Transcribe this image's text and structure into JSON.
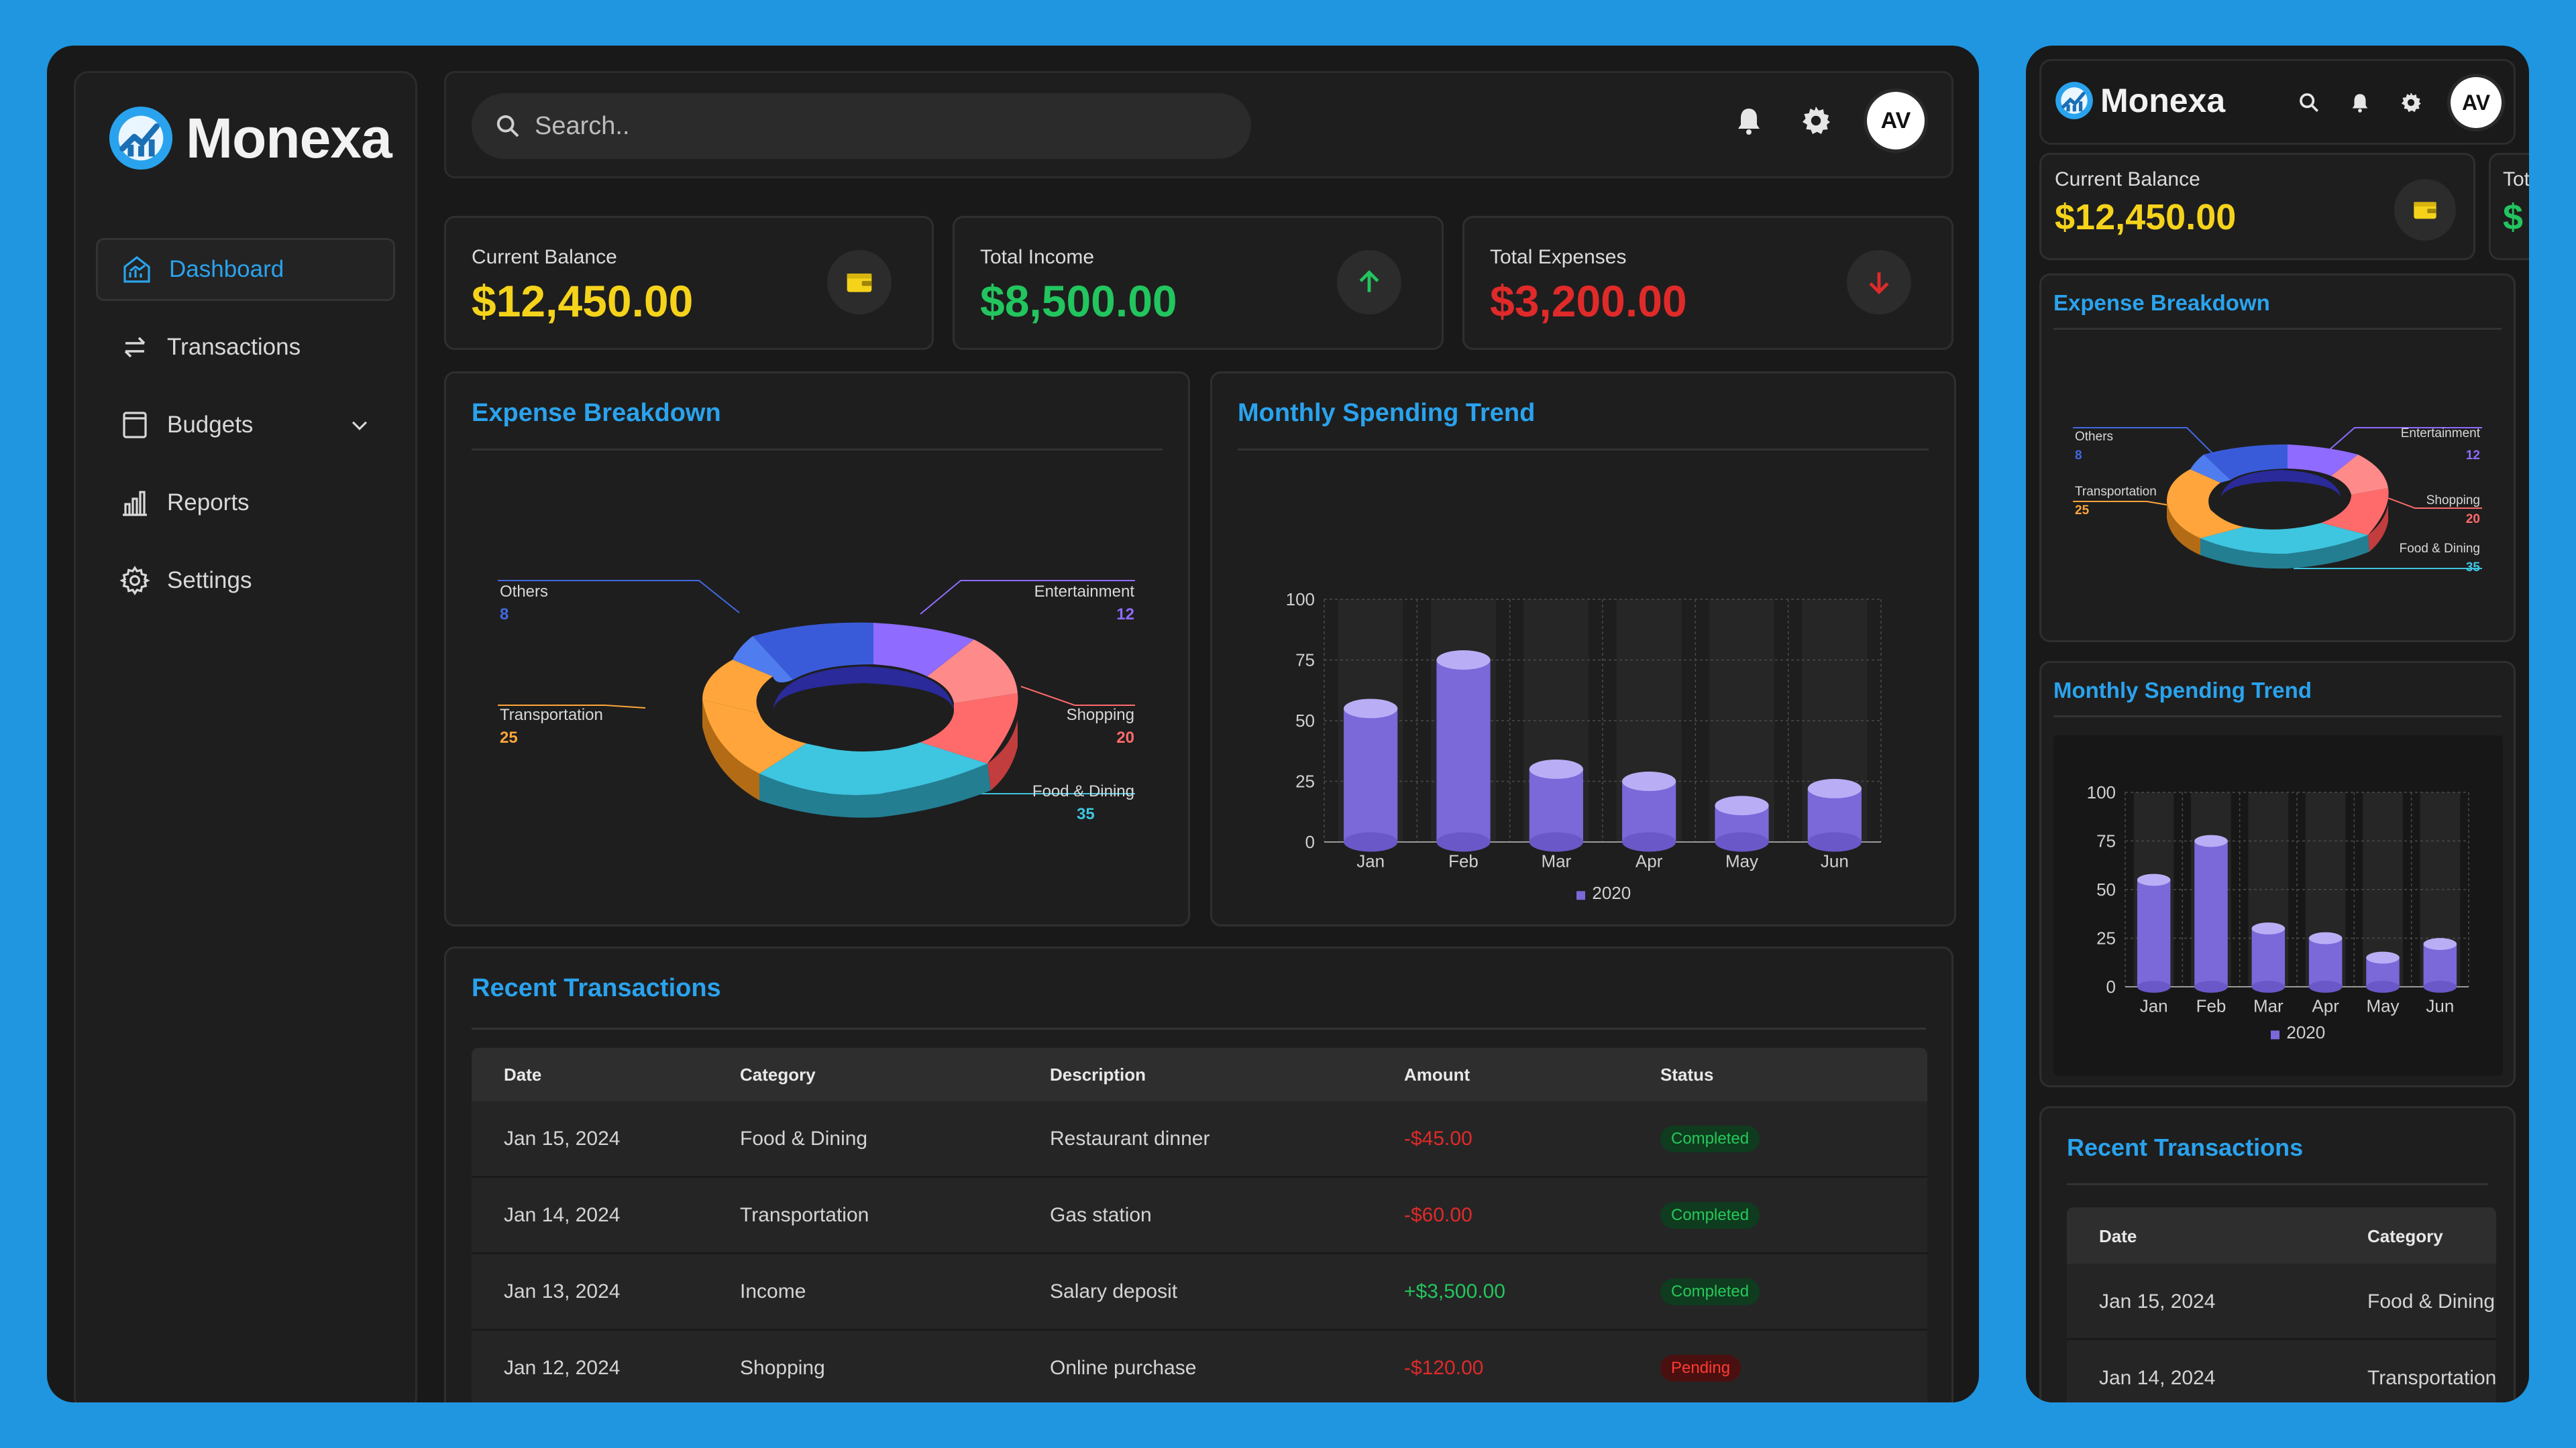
{
  "app": {
    "name": "Monexa",
    "brand_color": "#2aa3ee"
  },
  "sidebar": {
    "items": [
      {
        "label": "Dashboard",
        "icon": "dashboard-icon",
        "active": true
      },
      {
        "label": "Transactions",
        "icon": "swap-icon"
      },
      {
        "label": "Budgets",
        "icon": "budget-icon",
        "expandable": true
      },
      {
        "label": "Reports",
        "icon": "bar-chart-icon"
      },
      {
        "label": "Settings",
        "icon": "gear-icon"
      }
    ]
  },
  "header": {
    "search_placeholder": "Search..",
    "avatar_initials": "AV"
  },
  "stats": {
    "balance": {
      "label": "Current Balance",
      "value": "$12,450.00",
      "color": "#f5d31b",
      "icon": "wallet-icon"
    },
    "income": {
      "label": "Total Income",
      "value": "$8,500.00",
      "color": "#22c55e",
      "icon": "arrow-up-icon"
    },
    "expenses": {
      "label": "Total Expenses",
      "value": "$3,200.00",
      "color": "#e02a2a",
      "icon": "arrow-down-icon"
    }
  },
  "expense_panel": {
    "title": "Expense Breakdown",
    "slices": [
      {
        "label": "Others",
        "value": "8",
        "color": "#4169e1"
      },
      {
        "label": "Entertainment",
        "value": "12",
        "color": "#8f6bff"
      },
      {
        "label": "Shopping",
        "value": "20",
        "color": "#ff6b6b"
      },
      {
        "label": "Food & Dining",
        "value": "35",
        "color": "#3ec5e0"
      },
      {
        "label": "Transportation",
        "value": "25",
        "color": "#ffa53b"
      }
    ]
  },
  "trend_panel": {
    "title": "Monthly Spending Trend",
    "legend": "2020"
  },
  "chart_data": {
    "type": "bar",
    "categories": [
      "Jan",
      "Feb",
      "Mar",
      "Apr",
      "May",
      "Jun"
    ],
    "series": [
      {
        "name": "2020",
        "values": [
          55,
          75,
          30,
          25,
          15,
          22
        ]
      }
    ],
    "yticks": [
      "100",
      "75",
      "50",
      "25",
      "0"
    ],
    "ylim": [
      0,
      100
    ],
    "bar_color": "#7b68d9",
    "grid": true,
    "legend_position": "bottom"
  },
  "transactions": {
    "title": "Recent Transactions",
    "columns": [
      "Date",
      "Category",
      "Description",
      "Amount",
      "Status"
    ],
    "rows": [
      {
        "date": "Jan 15, 2024",
        "category": "Food & Dining",
        "description": "Restaurant dinner",
        "amount": "-$45.00",
        "status": "Completed",
        "positive": false
      },
      {
        "date": "Jan 14, 2024",
        "category": "Transportation",
        "description": "Gas station",
        "amount": "-$60.00",
        "status": "Completed",
        "positive": false
      },
      {
        "date": "Jan 13, 2024",
        "category": "Income",
        "description": "Salary deposit",
        "amount": "+$3,500.00",
        "status": "Completed",
        "positive": true
      },
      {
        "date": "Jan 12, 2024",
        "category": "Shopping",
        "description": "Online purchase",
        "amount": "-$120.00",
        "status": "Pending",
        "positive": false
      }
    ]
  },
  "mobile": {
    "partial_card_label": "Tot",
    "partial_card_value": "$"
  }
}
